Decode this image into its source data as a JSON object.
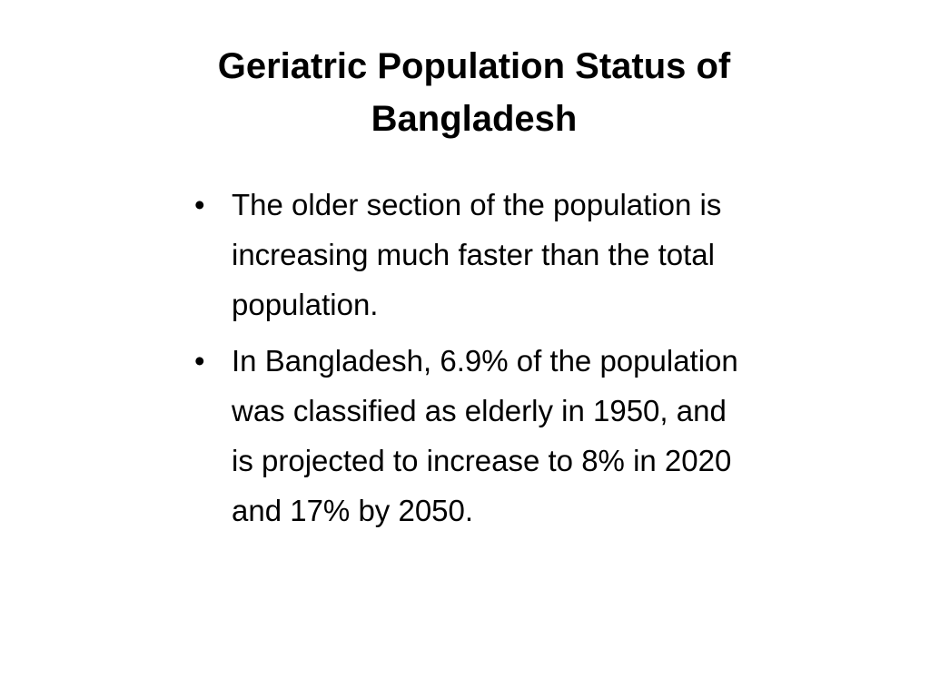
{
  "slide": {
    "title": "Geriatric Population Status of Bangladesh",
    "bullets": [
      [
        "The older section of the population is",
        "increasing much faster than the total",
        "population."
      ],
      [
        "In Bangladesh, 6.9% of the population",
        "was classified as elderly in 1950, and",
        "is projected to increase to 8% in 2020",
        "and 17% by 2050."
      ]
    ]
  }
}
